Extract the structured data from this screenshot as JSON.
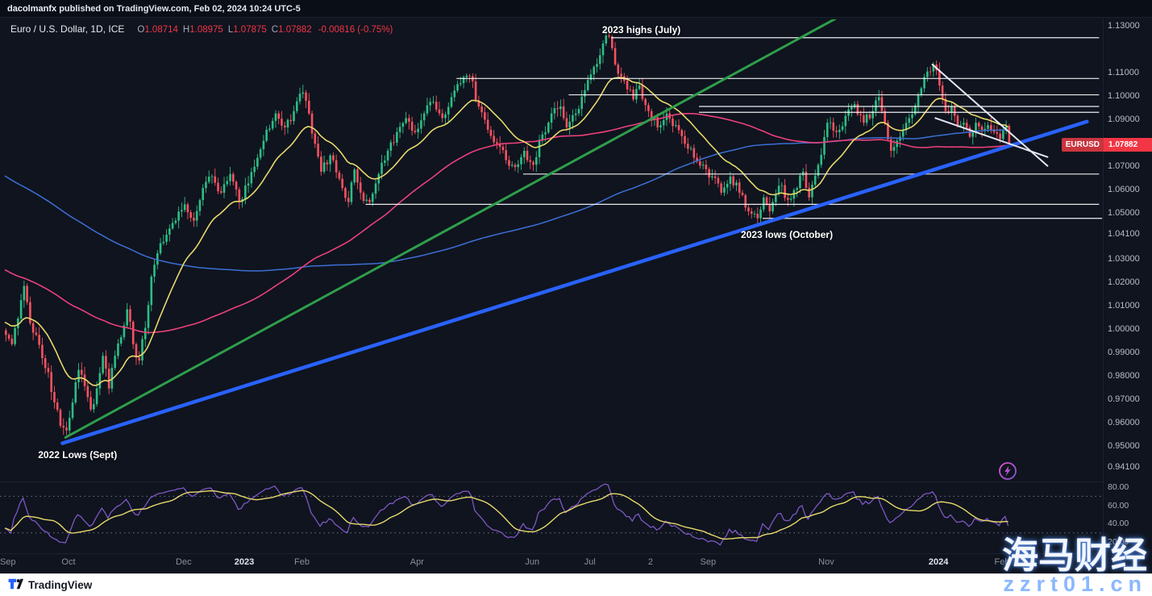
{
  "header": {
    "publisher": "dacolmanfx",
    "rest": " published on TradingView.com, Feb 02, 2024 10:24 UTC-5"
  },
  "legend": {
    "symbol": "Euro / U.S. Dollar, 1D, ICE",
    "ohlc": [
      {
        "label": "O",
        "value": "1.08714"
      },
      {
        "label": "H",
        "value": "1.08975"
      },
      {
        "label": "L",
        "value": "1.07875"
      },
      {
        "label": "C",
        "value": "1.07882"
      }
    ],
    "change": "-0.00816 (-0.75%)"
  },
  "price_label": {
    "symbol": "EURUSD",
    "value": "1.07882"
  },
  "price_axis": [
    "1.13000",
    "1.11000",
    "1.10000",
    "1.09000",
    "1.07000",
    "1.06000",
    "1.05000",
    "1.04100",
    "1.03000",
    "1.02000",
    "1.01000",
    "1.00000",
    "0.99000",
    "0.98000",
    "0.97000",
    "0.96000",
    "0.95000",
    "0.94100"
  ],
  "rsi_axis": [
    "80.00",
    "60.00",
    "40.00",
    "20.00"
  ],
  "time_axis": [
    {
      "label": "Sep",
      "bar": 1,
      "strong": false
    },
    {
      "label": "Oct",
      "bar": 21,
      "strong": false
    },
    {
      "label": "Dec",
      "bar": 59,
      "strong": false
    },
    {
      "label": "2023",
      "bar": 79,
      "strong": true
    },
    {
      "label": "Feb",
      "bar": 98,
      "strong": false
    },
    {
      "label": "Apr",
      "bar": 136,
      "strong": false
    },
    {
      "label": "Jun",
      "bar": 174,
      "strong": false
    },
    {
      "label": "Jul",
      "bar": 193,
      "strong": false
    },
    {
      "label": "2",
      "bar": 213,
      "strong": false
    },
    {
      "label": "Sep",
      "bar": 232,
      "strong": false
    },
    {
      "label": "Nov",
      "bar": 271,
      "strong": false
    },
    {
      "label": "2024",
      "bar": 308,
      "strong": true
    },
    {
      "label": "Feb",
      "bar": 329,
      "strong": false
    }
  ],
  "annotations": [
    {
      "text": "2023 highs (July)",
      "bar": 210,
      "price": 1.1285
    },
    {
      "text": "2023 lows (October)",
      "bar": 258,
      "price": 1.0405
    },
    {
      "text": "2022 Lows (Sept)",
      "bar": 24,
      "price": 0.946
    }
  ],
  "watermark": {
    "line1": "海马财经",
    "line2": "zzrt01.cn"
  },
  "footer": {
    "brand": "TradingView"
  },
  "colors": {
    "candle_up": "#2ebd85",
    "candle_down": "#f7525f",
    "ma_fast": "#e8d96a",
    "ma_mid": "#ec407a",
    "ma_slow": "#3d6fd4",
    "trend_green": "#2f9e4a",
    "trend_blue": "#2962ff",
    "white": "#eef2ff",
    "rsi": "#7e57c2",
    "rsi_ma": "#e8d96a",
    "accent_red": "#f23645"
  },
  "chart_data": {
    "type": "candlestick",
    "title": "Euro / U.S. Dollar, 1D, ICE",
    "symbol": "EURUSD",
    "timeframe": "1D",
    "bars_visible": 332,
    "axis_price_range": [
      0.941,
      1.13
    ],
    "grid": false,
    "close_anchors": [
      [
        0,
        0.9975
      ],
      [
        2,
        0.9935
      ],
      [
        4,
        1.0045
      ],
      [
        6,
        1.0185
      ],
      [
        8,
        1.0025
      ],
      [
        10,
        0.9975
      ],
      [
        12,
        0.9875
      ],
      [
        14,
        0.9815
      ],
      [
        16,
        0.9685
      ],
      [
        18,
        0.9585
      ],
      [
        20,
        0.9565
      ],
      [
        22,
        0.9685
      ],
      [
        24,
        0.9825
      ],
      [
        26,
        0.9755
      ],
      [
        28,
        0.9655
      ],
      [
        30,
        0.9745
      ],
      [
        32,
        0.9885
      ],
      [
        34,
        0.9745
      ],
      [
        36,
        0.9885
      ],
      [
        38,
        0.9965
      ],
      [
        40,
        1.0085
      ],
      [
        42,
        0.9935
      ],
      [
        44,
        0.9865
      ],
      [
        46,
        1.0005
      ],
      [
        48,
        1.0225
      ],
      [
        50,
        1.0325
      ],
      [
        53,
        1.0405
      ],
      [
        56,
        1.0465
      ],
      [
        59,
        1.0535
      ],
      [
        62,
        1.0465
      ],
      [
        65,
        1.0605
      ],
      [
        68,
        1.0655
      ],
      [
        71,
        1.0585
      ],
      [
        74,
        1.0665
      ],
      [
        77,
        1.0545
      ],
      [
        80,
        1.0625
      ],
      [
        83,
        1.0735
      ],
      [
        86,
        1.0855
      ],
      [
        89,
        1.0925
      ],
      [
        92,
        1.0865
      ],
      [
        95,
        1.0935
      ],
      [
        98,
        1.1015
      ],
      [
        100,
        1.0925
      ],
      [
        102,
        1.0795
      ],
      [
        104,
        1.0675
      ],
      [
        107,
        1.0745
      ],
      [
        110,
        1.0645
      ],
      [
        113,
        1.0545
      ],
      [
        115,
        1.0685
      ],
      [
        117,
        1.0585
      ],
      [
        120,
        1.0545
      ],
      [
        123,
        1.0665
      ],
      [
        126,
        1.0765
      ],
      [
        129,
        1.0845
      ],
      [
        132,
        1.0905
      ],
      [
        135,
        1.0845
      ],
      [
        138,
        1.0925
      ],
      [
        141,
        1.0975
      ],
      [
        144,
        1.0905
      ],
      [
        147,
        1.0995
      ],
      [
        150,
        1.1055
      ],
      [
        153,
        1.1085
      ],
      [
        156,
        1.0955
      ],
      [
        159,
        1.0855
      ],
      [
        162,
        1.0795
      ],
      [
        165,
        1.0725
      ],
      [
        168,
        1.0695
      ],
      [
        171,
        1.0765
      ],
      [
        174,
        1.0705
      ],
      [
        177,
        1.0835
      ],
      [
        180,
        1.0925
      ],
      [
        183,
        1.0955
      ],
      [
        185,
        1.0865
      ],
      [
        188,
        1.0925
      ],
      [
        191,
        1.1025
      ],
      [
        194,
        1.1125
      ],
      [
        197,
        1.1225
      ],
      [
        199,
        1.1255
      ],
      [
        201,
        1.1135
      ],
      [
        204,
        1.1065
      ],
      [
        207,
        1.0985
      ],
      [
        209,
        1.1045
      ],
      [
        212,
        1.0935
      ],
      [
        215,
        1.0865
      ],
      [
        218,
        1.0925
      ],
      [
        221,
        1.0875
      ],
      [
        224,
        1.0795
      ],
      [
        227,
        1.0735
      ],
      [
        230,
        1.0705
      ],
      [
        233,
        1.0655
      ],
      [
        236,
        1.0585
      ],
      [
        239,
        1.0655
      ],
      [
        242,
        1.0585
      ],
      [
        245,
        1.0505
      ],
      [
        248,
        1.0475
      ],
      [
        250,
        1.0565
      ],
      [
        252,
        1.0505
      ],
      [
        255,
        1.0615
      ],
      [
        258,
        1.0555
      ],
      [
        261,
        1.0605
      ],
      [
        263,
        1.0675
      ],
      [
        265,
        1.0565
      ],
      [
        268,
        1.0705
      ],
      [
        271,
        1.0885
      ],
      [
        274,
        1.0845
      ],
      [
        277,
        1.0915
      ],
      [
        280,
        1.0965
      ],
      [
        283,
        1.0885
      ],
      [
        286,
        1.0935
      ],
      [
        288,
        1.0995
      ],
      [
        290,
        1.0885
      ],
      [
        292,
        1.0765
      ],
      [
        295,
        1.0825
      ],
      [
        298,
        1.0905
      ],
      [
        301,
        1.1005
      ],
      [
        304,
        1.1105
      ],
      [
        306,
        1.1135
      ],
      [
        308,
        1.1045
      ],
      [
        310,
        1.0935
      ],
      [
        312,
        1.0955
      ],
      [
        314,
        1.0875
      ],
      [
        316,
        1.0885
      ],
      [
        318,
        1.0825
      ],
      [
        320,
        1.0885
      ],
      [
        322,
        1.0855
      ],
      [
        324,
        1.0875
      ],
      [
        326,
        1.0845
      ],
      [
        328,
        1.0815
      ],
      [
        330,
        1.0871
      ],
      [
        331,
        1.0788
      ]
    ],
    "prehistory_anchors": [
      [
        -220,
        1.175
      ],
      [
        -170,
        1.13
      ],
      [
        -130,
        1.08
      ],
      [
        -95,
        1.06
      ],
      [
        -60,
        1.03
      ],
      [
        -30,
        1.008
      ],
      [
        -1,
        1.001
      ]
    ],
    "moving_averages": [
      {
        "name": "ema-20",
        "length": 20,
        "kind": "ema",
        "color_key": "ma_fast",
        "width": 1.6
      },
      {
        "name": "sma-100",
        "length": 100,
        "kind": "sma",
        "color_key": "ma_mid",
        "width": 1.6
      },
      {
        "name": "sma-200",
        "length": 200,
        "kind": "sma",
        "color_key": "ma_slow",
        "width": 1.5
      }
    ],
    "horizontal_levels": [
      {
        "price": 1.125,
        "from_bar": 200,
        "to_bar": 361
      },
      {
        "price": 1.1075,
        "from_bar": 149,
        "to_bar": 361
      },
      {
        "price": 1.1005,
        "from_bar": 186,
        "to_bar": 361
      },
      {
        "price": 1.0955,
        "from_bar": 229,
        "to_bar": 361
      },
      {
        "price": 1.093,
        "from_bar": 229,
        "to_bar": 361
      },
      {
        "price": 1.0665,
        "from_bar": 171,
        "to_bar": 361
      },
      {
        "price": 1.0535,
        "from_bar": 119,
        "to_bar": 361
      },
      {
        "price": 1.0475,
        "from_bar": 250,
        "to_bar": 362
      }
    ],
    "trendlines": [
      {
        "name": "uptrend-from-2022-low",
        "color_key": "trend_green",
        "width": 3,
        "opacity": 1,
        "points": [
          [
            20,
            0.9535
          ],
          [
            283,
            1.1395
          ]
        ]
      },
      {
        "name": "major-blue-support",
        "color_key": "trend_blue",
        "width": 4.5,
        "opacity": 1,
        "points": [
          [
            19,
            0.951
          ],
          [
            357,
            1.089
          ]
        ]
      },
      {
        "name": "falling-wedge-upper",
        "color_key": "white",
        "width": 2,
        "opacity": 0.95,
        "points": [
          [
            306,
            1.1135
          ],
          [
            344,
            1.07
          ]
        ]
      },
      {
        "name": "falling-wedge-lower",
        "color_key": "white",
        "width": 2,
        "opacity": 0.95,
        "points": [
          [
            307,
            1.0905
          ],
          [
            344,
            1.0738
          ]
        ]
      }
    ],
    "lower_panel": {
      "type": "rsi",
      "length": 14,
      "smoothing_length": 14,
      "dashed_levels": [
        70,
        30
      ],
      "axis_labels": [
        80,
        60,
        40,
        20
      ]
    }
  }
}
